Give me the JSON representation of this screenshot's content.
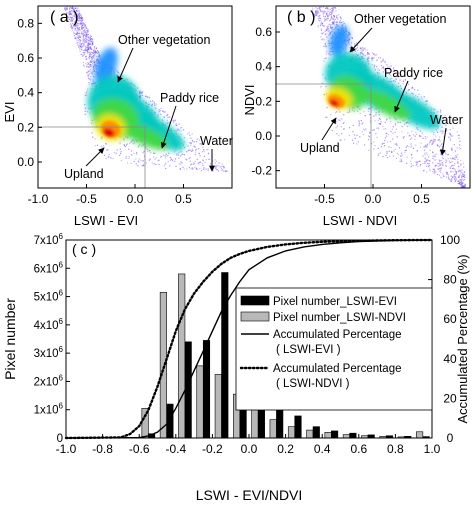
{
  "figure": {
    "panel_a": {
      "label": "( a )",
      "xlabel": "LSWI - EVI",
      "ylabel": "EVI",
      "annotations": [
        "Other vegetation",
        "Paddy rice",
        "Water",
        "Upland"
      ]
    },
    "panel_b": {
      "label": "( b )",
      "xlabel": "LSWI - NDVI",
      "ylabel": "NDVI",
      "annotations": [
        "Other vegetation",
        "Paddy rice",
        "Water",
        "Upland"
      ]
    },
    "panel_c": {
      "label": "( c )"
    }
  },
  "chart_data": [
    {
      "type": "heatmap",
      "panel": "a",
      "xlabel": "LSWI - EVI",
      "ylabel": "EVI",
      "xlim": [
        -1.0,
        1.0
      ],
      "ylim": [
        -0.15,
        0.9
      ],
      "x_ticks": [
        "-1.0",
        "-0.5",
        "0.0",
        "0.5"
      ],
      "y_ticks": [
        "0.0",
        "0.2",
        "0.4",
        "0.6",
        "0.8"
      ],
      "reference_lines": {
        "x": 0.0,
        "y": 0.25
      },
      "annotations": [
        {
          "text": "Other vegetation",
          "x": -0.18,
          "y": 0.55
        },
        {
          "text": "Paddy rice",
          "x": 0.25,
          "y": 0.2
        },
        {
          "text": "Water",
          "x": 0.7,
          "y": 0.08
        },
        {
          "text": "Upland",
          "x": -0.25,
          "y": 0.17
        }
      ],
      "density_peak": {
        "x": -0.25,
        "y": 0.18
      },
      "colorscale": [
        "#f3e8fb",
        "#6a3df0",
        "#1e90ff",
        "#00c8c0",
        "#40d840",
        "#f5e400",
        "#ff8c00",
        "#e00000"
      ]
    },
    {
      "type": "heatmap",
      "panel": "b",
      "xlabel": "LSWI - NDVI",
      "ylabel": "NDVI",
      "xlim": [
        -1.0,
        1.0
      ],
      "ylim": [
        -0.3,
        0.75
      ],
      "x_ticks": [
        "-0.5",
        "0.0",
        "0.5"
      ],
      "y_ticks": [
        "-0.2",
        "0.0",
        "0.2",
        "0.4",
        "0.6"
      ],
      "reference_lines": {
        "x": 0.0,
        "y": 0.3
      },
      "annotations": [
        {
          "text": "Other vegetation",
          "x": -0.3,
          "y": 0.5
        },
        {
          "text": "Paddy rice",
          "x": 0.35,
          "y": 0.22
        },
        {
          "text": "Water",
          "x": 0.75,
          "y": -0.02
        },
        {
          "text": "Upland",
          "x": -0.4,
          "y": 0.18
        }
      ],
      "density_peak": {
        "x": -0.4,
        "y": 0.2
      },
      "colorscale": [
        "#f3e8fb",
        "#6a3df0",
        "#1e90ff",
        "#00c8c0",
        "#40d840",
        "#f5e400",
        "#ff8c00",
        "#e00000"
      ]
    },
    {
      "type": "bar",
      "panel": "c",
      "xlabel": "LSWI - EVI/NDVI",
      "ylabel": "Pixel number",
      "y2label": "Accumulated Percentage (%)",
      "xlim": [
        -1.0,
        1.0
      ],
      "ylim": [
        0,
        7000000
      ],
      "y2lim": [
        0,
        100
      ],
      "x_ticks": [
        "-1.0",
        "-0.8",
        "-0.6",
        "-0.4",
        "-0.2",
        "0.0",
        "0.2",
        "0.4",
        "0.6",
        "0.8",
        "1.0"
      ],
      "y_ticks": [
        {
          "base": "0",
          "exp": ""
        },
        {
          "base": "1x10",
          "exp": "6"
        },
        {
          "base": "2x10",
          "exp": "6"
        },
        {
          "base": "3x10",
          "exp": "6"
        },
        {
          "base": "4x10",
          "exp": "6"
        },
        {
          "base": "5x10",
          "exp": "6"
        },
        {
          "base": "6x10",
          "exp": "6"
        },
        {
          "base": "7x10",
          "exp": "6"
        }
      ],
      "y2_ticks": [
        "0",
        "20",
        "40",
        "60",
        "80",
        "100"
      ],
      "bin_centers": [
        -0.55,
        -0.45,
        -0.35,
        -0.25,
        -0.15,
        -0.05,
        0.05,
        0.15,
        0.25,
        0.35,
        0.45,
        0.55,
        0.65,
        0.75,
        0.85,
        0.95
      ],
      "legend_position": "right",
      "series": [
        {
          "name": "Pixel number_LSWI-EVI",
          "kind": "bar",
          "color": "#000000",
          "values": [
            150000,
            1200000,
            3400000,
            3450000,
            5850000,
            3450000,
            1850000,
            1150000,
            780000,
            400000,
            250000,
            170000,
            110000,
            80000,
            60000,
            50000
          ]
        },
        {
          "name": "Pixel number_LSWI-NDVI",
          "kind": "bar",
          "color": "#b8b8b8",
          "values": [
            1050000,
            5150000,
            5800000,
            2550000,
            2250000,
            1550000,
            1100000,
            650000,
            400000,
            280000,
            200000,
            120000,
            80000,
            60000,
            40000,
            220000
          ]
        },
        {
          "name": "Accumulated Percentage\n( LSWI-EVI )",
          "kind": "line",
          "style": "solid",
          "axis": "right",
          "x": [
            -1.0,
            -0.6,
            -0.55,
            -0.5,
            -0.45,
            -0.4,
            -0.35,
            -0.3,
            -0.25,
            -0.2,
            -0.15,
            -0.1,
            -0.05,
            0.0,
            0.1,
            0.2,
            0.3,
            0.4,
            0.5,
            0.6,
            0.8,
            1.0
          ],
          "y": [
            0,
            0.2,
            1,
            3,
            7,
            15,
            24,
            34,
            44,
            54,
            64,
            72,
            79,
            85,
            91,
            94.5,
            96.5,
            97.8,
            98.6,
            99.2,
            99.8,
            100
          ]
        },
        {
          "name": "Accumulated Percentage\n( LSWI-NDVI )",
          "kind": "line",
          "style": "dotted",
          "axis": "right",
          "x": [
            -1.0,
            -0.7,
            -0.65,
            -0.6,
            -0.55,
            -0.5,
            -0.45,
            -0.4,
            -0.35,
            -0.3,
            -0.25,
            -0.2,
            -0.15,
            -0.1,
            -0.05,
            0.0,
            0.1,
            0.2,
            0.3,
            0.4,
            0.6,
            0.8,
            1.0
          ],
          "y": [
            0,
            0.3,
            2,
            6,
            14,
            26,
            40,
            54,
            65,
            73,
            79,
            84,
            88,
            91,
            93,
            94.5,
            96.5,
            97.8,
            98.6,
            99.1,
            99.6,
            99.9,
            100
          ]
        }
      ]
    }
  ]
}
